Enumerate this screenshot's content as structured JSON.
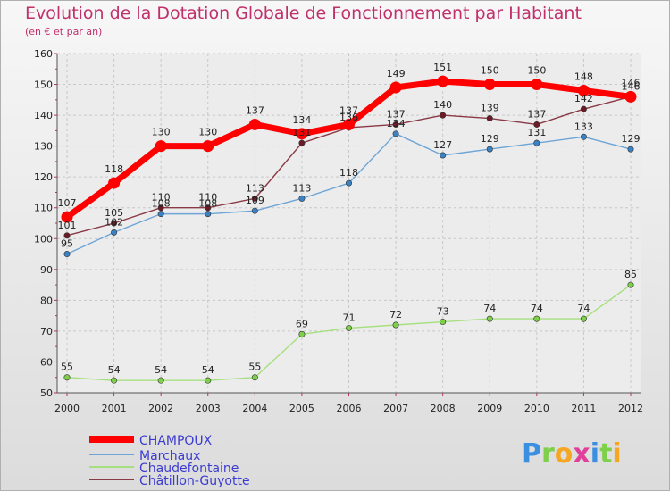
{
  "chart_data": {
    "type": "line",
    "title": "Evolution de la Dotation Globale de Fonctionnement par Habitant",
    "subtitle": "(en € et par an)",
    "xlabel": "",
    "ylabel": "",
    "x": [
      2000,
      2001,
      2002,
      2003,
      2004,
      2005,
      2006,
      2007,
      2008,
      2009,
      2010,
      2011,
      2012
    ],
    "x_labels": [
      "2000",
      "2001",
      "2002",
      "2003",
      "2004",
      "2005",
      "2006",
      "2007",
      "2008",
      "2009",
      "2010",
      "2011",
      "2012"
    ],
    "ylim": [
      50,
      160
    ],
    "y_ticks": [
      "50",
      "60",
      "70",
      "80",
      "90",
      "100",
      "110",
      "120",
      "130",
      "140",
      "150",
      "160"
    ],
    "grid": true,
    "legend_position": "bottom-left",
    "series": [
      {
        "name": "CHAMPOUX",
        "color": "#ff0000",
        "point_color": "#ff0000",
        "values": [
          107,
          118,
          130,
          130,
          137,
          134,
          137,
          149,
          151,
          150,
          150,
          148,
          146
        ],
        "labels": [
          "107",
          "118",
          "130",
          "130",
          "137",
          "134",
          "137",
          "149",
          "151",
          "150",
          "150",
          "148",
          "146"
        ]
      },
      {
        "name": "Marchaux",
        "color": "#6da5d6",
        "point_color": "#3a82c4",
        "values": [
          95,
          102,
          108,
          108,
          109,
          113,
          118,
          134,
          127,
          129,
          131,
          133,
          129
        ],
        "labels": [
          "95",
          "102",
          "108",
          "108",
          "109",
          "113",
          "118",
          "134",
          "127",
          "129",
          "131",
          "133",
          "129"
        ]
      },
      {
        "name": "Chaudefontaine",
        "color": "#a6e07e",
        "point_color": "#7ed04a",
        "values": [
          55,
          54,
          54,
          54,
          55,
          69,
          71,
          72,
          73,
          74,
          74,
          74,
          85
        ],
        "labels": [
          "55",
          "54",
          "54",
          "54",
          "55",
          "69",
          "71",
          "72",
          "73",
          "74",
          "74",
          "74",
          "85"
        ]
      },
      {
        "name": "Châtillon-Guyotte",
        "color": "#8a3a46",
        "point_color": "#6a1b26",
        "values": [
          101,
          105,
          110,
          110,
          113,
          131,
          136,
          137,
          140,
          139,
          137,
          142,
          146
        ],
        "labels": [
          "101",
          "105",
          "110",
          "110",
          "113",
          "131",
          "136",
          "137",
          "140",
          "139",
          "137",
          "142",
          "146"
        ]
      }
    ]
  },
  "branding": {
    "logo_text": "Proxiti",
    "logo_letters": [
      "P",
      "r",
      "o",
      "x",
      "i",
      "t",
      "i"
    ],
    "logo_colors": [
      "#3a8fe0",
      "#7ed04a",
      "#f5a623",
      "#e0409a",
      "#3a8fe0",
      "#7ed04a",
      "#f5a623"
    ]
  }
}
